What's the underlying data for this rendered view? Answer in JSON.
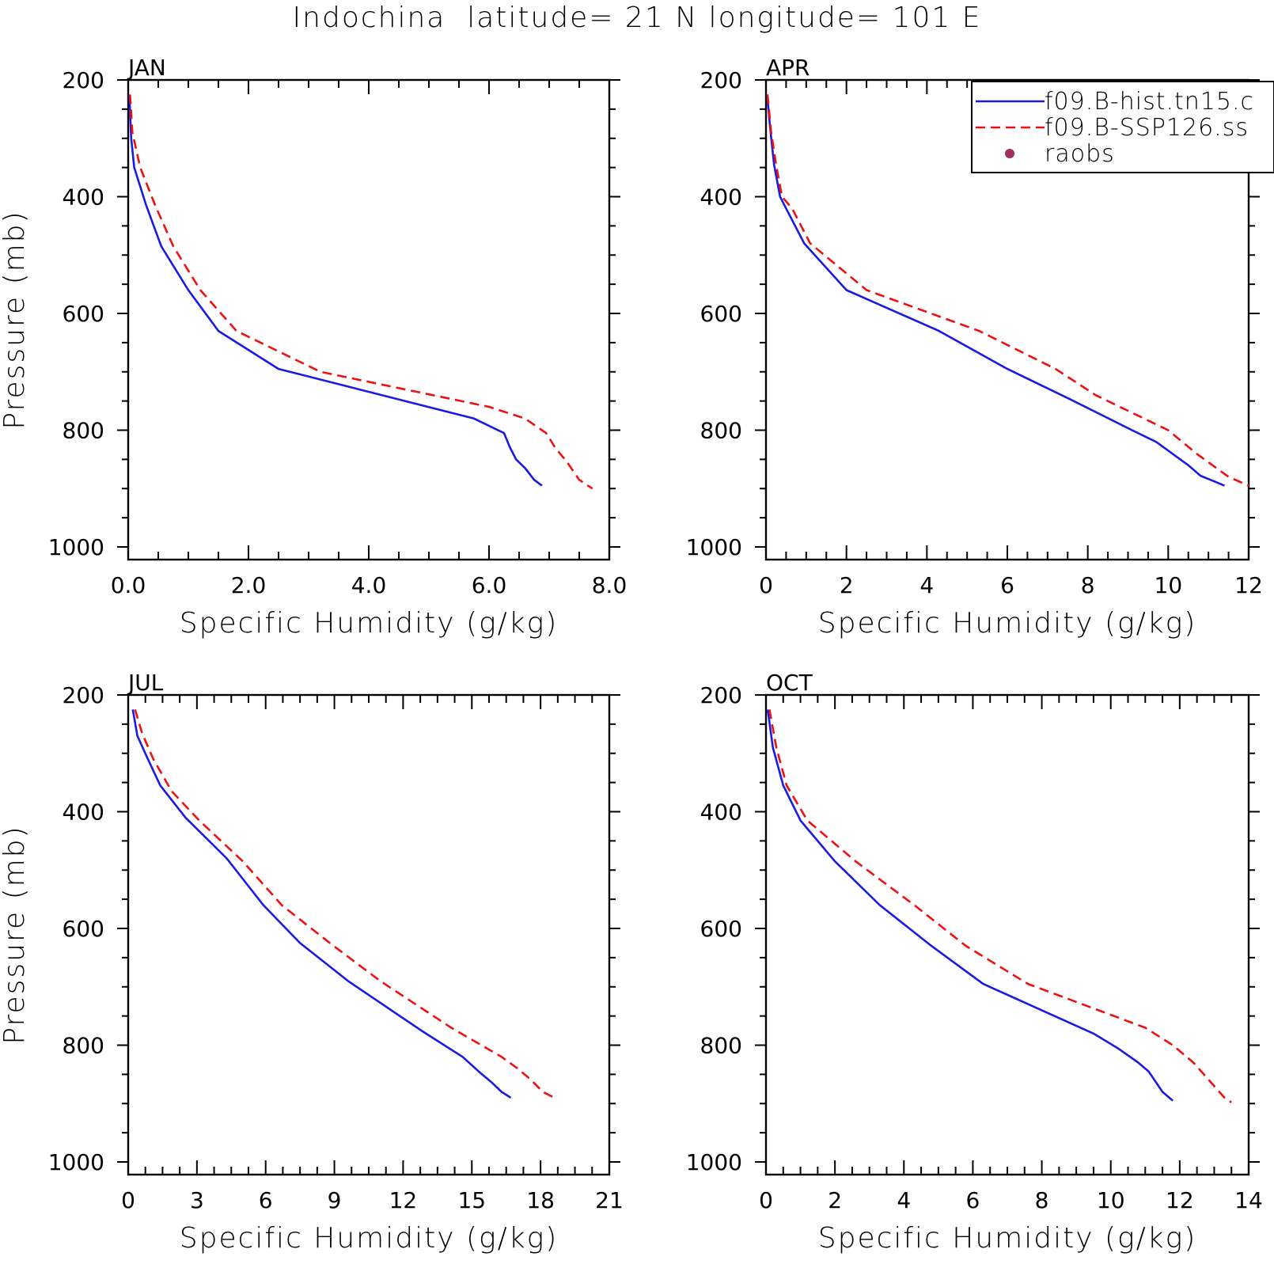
{
  "title": "Indochina  latitude= 21 N longitude= 101 E",
  "colors": {
    "hist": "#1a1ae6",
    "ssp": "#ee1111",
    "raobs": "#9e2f5e",
    "axis": "#000000"
  },
  "legend": {
    "entries": [
      {
        "label": "f09.B-hist.tn15.c",
        "style": "solid",
        "color": "#1a1ae6"
      },
      {
        "label": "f09.B-SSP126.ss",
        "style": "dashed",
        "color": "#ee1111"
      },
      {
        "label": "raobs",
        "style": "marker",
        "color": "#9e2f5e"
      }
    ]
  },
  "chart_data": [
    {
      "type": "line",
      "panel": "JAN",
      "xlabel": "Specific Humidity (g/kg)",
      "ylabel": "Pressure (mb)",
      "xlim": [
        0,
        8
      ],
      "ylim": [
        200,
        1000
      ],
      "y_inverted": true,
      "xticks": [
        0,
        2,
        4,
        6,
        8
      ],
      "xticklabels": [
        "0.0",
        "2.0",
        "4.0",
        "6.0",
        "8.0"
      ],
      "yticks": [
        200,
        400,
        600,
        800,
        1000
      ],
      "yticklabels": [
        "200",
        "400",
        "600",
        "800",
        "1000"
      ],
      "series": [
        {
          "name": "f09.B-hist.tn15.c",
          "x": [
            0.02,
            0.05,
            0.1,
            0.3,
            0.55,
            1.0,
            1.5,
            2.5,
            5.75,
            6.25,
            6.35,
            6.45,
            6.6,
            6.75,
            6.88
          ],
          "y": [
            225,
            300,
            350,
            415,
            485,
            560,
            630,
            695,
            780,
            805,
            830,
            850,
            865,
            885,
            895
          ]
        },
        {
          "name": "f09.B-SSP126.ss",
          "x": [
            0.03,
            0.07,
            0.2,
            0.45,
            0.75,
            1.2,
            1.8,
            3.2,
            6.0,
            6.6,
            6.95,
            7.1,
            7.3,
            7.5,
            7.72
          ],
          "y": [
            225,
            290,
            350,
            415,
            485,
            560,
            630,
            700,
            760,
            780,
            805,
            830,
            855,
            885,
            900
          ]
        }
      ]
    },
    {
      "type": "line",
      "panel": "APR",
      "xlabel": "Specific Humidity (g/kg)",
      "ylabel": "",
      "xlim": [
        0,
        12
      ],
      "ylim": [
        200,
        1000
      ],
      "y_inverted": true,
      "xticks": [
        0,
        2,
        4,
        6,
        8,
        10,
        12
      ],
      "xticklabels": [
        "0",
        "2",
        "4",
        "6",
        "8",
        "10",
        "12"
      ],
      "yticks": [
        200,
        400,
        600,
        800,
        1000
      ],
      "yticklabels": [
        "200",
        "400",
        "600",
        "800",
        "1000"
      ],
      "series": [
        {
          "name": "f09.B-hist.tn15.c",
          "x": [
            0.03,
            0.1,
            0.2,
            0.35,
            0.5,
            0.95,
            2.0,
            4.3,
            6.0,
            7.5,
            9.1,
            9.7,
            10.5,
            10.8,
            11.4
          ],
          "y": [
            225,
            280,
            345,
            400,
            420,
            480,
            560,
            630,
            695,
            745,
            800,
            820,
            860,
            878,
            895
          ]
        },
        {
          "name": "f09.B-SSP126.ss",
          "x": [
            0.04,
            0.12,
            0.25,
            0.4,
            0.65,
            1.1,
            2.5,
            5.3,
            7.2,
            8.2,
            10.0,
            10.7,
            11.3,
            11.5,
            12.0
          ],
          "y": [
            225,
            285,
            345,
            400,
            420,
            480,
            560,
            630,
            695,
            740,
            800,
            840,
            870,
            880,
            895
          ]
        }
      ]
    },
    {
      "type": "line",
      "panel": "JUL",
      "xlabel": "Specific Humidity (g/kg)",
      "ylabel": "Pressure (mb)",
      "xlim": [
        0,
        21
      ],
      "ylim": [
        200,
        1000
      ],
      "y_inverted": true,
      "xticks": [
        0,
        3,
        6,
        9,
        12,
        15,
        18,
        21
      ],
      "xticklabels": [
        "0",
        "3",
        "6",
        "9",
        "12",
        "15",
        "18",
        "21"
      ],
      "yticks": [
        200,
        400,
        600,
        800,
        1000
      ],
      "yticklabels": [
        "200",
        "400",
        "600",
        "800",
        "1000"
      ],
      "series": [
        {
          "name": "f09.B-hist.tn15.c",
          "x": [
            0.2,
            0.4,
            0.8,
            1.4,
            2.5,
            4.3,
            5.9,
            7.5,
            9.6,
            12.8,
            14.6,
            15.3,
            15.9,
            16.3,
            16.7
          ],
          "y": [
            225,
            270,
            305,
            355,
            410,
            480,
            560,
            625,
            690,
            775,
            820,
            845,
            865,
            880,
            890
          ]
        },
        {
          "name": "f09.B-SSP126.ss",
          "x": [
            0.3,
            0.6,
            1.1,
            1.9,
            3.1,
            5.0,
            6.7,
            8.8,
            11.0,
            14.1,
            16.3,
            17.0,
            17.6,
            18.1,
            18.6
          ],
          "y": [
            225,
            265,
            310,
            365,
            415,
            485,
            560,
            625,
            690,
            770,
            820,
            840,
            860,
            880,
            890
          ]
        }
      ]
    },
    {
      "type": "line",
      "panel": "OCT",
      "xlabel": "Specific Humidity (g/kg)",
      "ylabel": "",
      "xlim": [
        0,
        14
      ],
      "ylim": [
        200,
        1000
      ],
      "y_inverted": true,
      "xticks": [
        0,
        2,
        4,
        6,
        8,
        10,
        12,
        14
      ],
      "xticklabels": [
        "0",
        "2",
        "4",
        "6",
        "8",
        "10",
        "12",
        "14"
      ],
      "yticks": [
        200,
        400,
        600,
        800,
        1000
      ],
      "yticklabels": [
        "200",
        "400",
        "600",
        "800",
        "1000"
      ],
      "series": [
        {
          "name": "f09.B-hist.tn15.c",
          "x": [
            0.05,
            0.2,
            0.5,
            1.0,
            2.0,
            3.3,
            4.8,
            6.3,
            9.5,
            10.2,
            10.8,
            11.1,
            11.5,
            11.8
          ],
          "y": [
            225,
            290,
            355,
            415,
            485,
            560,
            630,
            695,
            780,
            805,
            830,
            845,
            880,
            895
          ]
        },
        {
          "name": "f09.B-SSP126.ss",
          "x": [
            0.1,
            0.3,
            0.6,
            1.2,
            2.6,
            4.3,
            5.8,
            7.6,
            11.0,
            11.8,
            12.4,
            12.7,
            13.0,
            13.3,
            13.5
          ],
          "y": [
            225,
            290,
            355,
            415,
            485,
            560,
            630,
            695,
            770,
            800,
            830,
            850,
            870,
            890,
            898
          ]
        }
      ]
    }
  ]
}
